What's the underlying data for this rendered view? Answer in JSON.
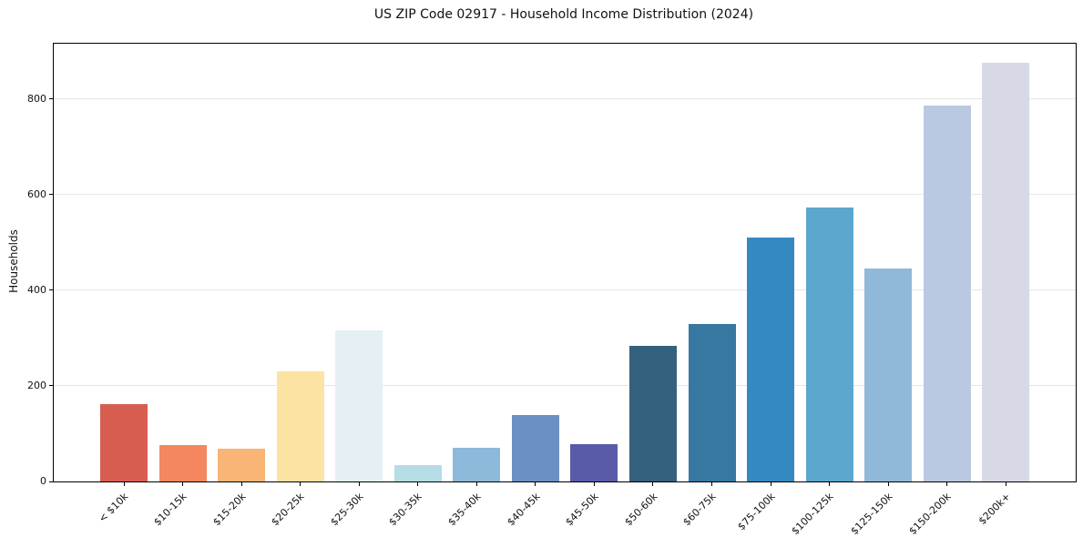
{
  "chart_data": {
    "type": "bar",
    "title": "US ZIP Code 02917 - Household Income Distribution (2024)",
    "xlabel": "",
    "ylabel": "Households",
    "categories": [
      "< $10k",
      "$10-15k",
      "$15-20k",
      "$20-25k",
      "$25-30k",
      "$30-35k",
      "$35-40k",
      "$40-45k",
      "$45-50k",
      "$50-60k",
      "$60-75k",
      "$75-100k",
      "$100-125k",
      "$125-150k",
      "$150-200k",
      "$200k+"
    ],
    "values": [
      162,
      76,
      68,
      230,
      316,
      34,
      70,
      140,
      78,
      284,
      330,
      510,
      574,
      446,
      786,
      876
    ],
    "bar_colors": [
      "#d85d51",
      "#f4875f",
      "#f8b576",
      "#fce3a3",
      "#e5f0f4",
      "#b6dce6",
      "#8db9da",
      "#6b90c4",
      "#5a5ba8",
      "#34617d",
      "#36789f",
      "#3389c0",
      "#5ba7cd",
      "#90b9d9",
      "#bac9e2",
      "#d7d9e7"
    ],
    "yticks": [
      0,
      200,
      400,
      600,
      800
    ],
    "ylim": [
      0,
      916
    ],
    "grid": "horizontal",
    "gridline_color": "#e6e6e6",
    "spine_color": "#000000",
    "background_color": "#ffffff",
    "legend": "none",
    "x_tick_rotation_deg": 45
  }
}
